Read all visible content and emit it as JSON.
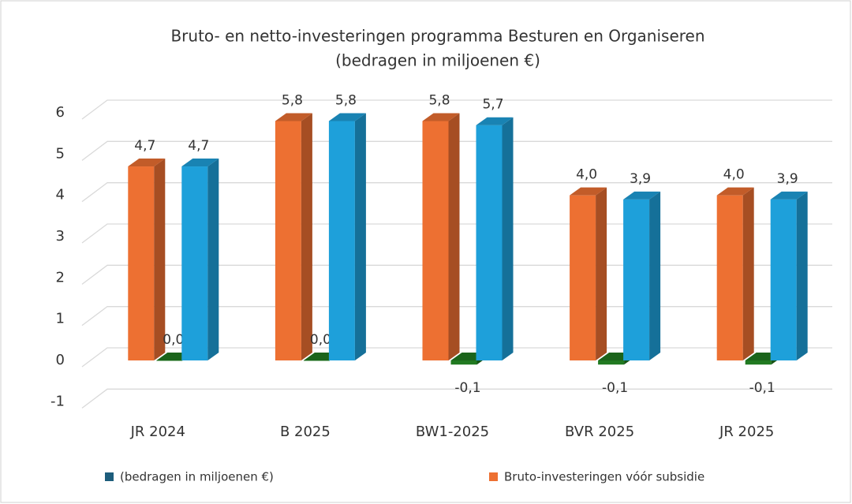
{
  "chart_data": {
    "type": "bar3d",
    "title": "Bruto- en netto-investeringen programma Besturen en Organiseren",
    "subtitle": "(bedragen in miljoenen €)",
    "categories": [
      "JR 2024",
      "B 2025",
      "BW1-2025",
      "BVR 2025",
      "JR 2025"
    ],
    "series": [
      {
        "name": "Bruto-investeringen vóór subsidie",
        "color": "#ed7032",
        "values": [
          4.7,
          5.8,
          5.8,
          4.0,
          4.0
        ],
        "value_labels": [
          "4,7",
          "5,8",
          "5,8",
          "4,0",
          "4,0"
        ]
      },
      {
        "color": "#217a21",
        "values": [
          0,
          0,
          -0.1,
          -0.1,
          -0.1
        ],
        "value_labels": [
          "0,0",
          "0,0",
          "-0,1",
          "-0,1",
          "-0,1"
        ]
      },
      {
        "name": "(bedragen in miljoenen €)",
        "color": "#1ea0da",
        "legend_color": "#1d5d7c",
        "values": [
          4.7,
          5.8,
          5.7,
          3.9,
          3.9
        ],
        "value_labels": [
          "4,7",
          "5,8",
          "5,7",
          "3,9",
          "3,9"
        ]
      }
    ],
    "ylim": [
      -1,
      6
    ],
    "yticks": [
      -1,
      0,
      1,
      2,
      3,
      4,
      5,
      6
    ],
    "grid": true
  }
}
